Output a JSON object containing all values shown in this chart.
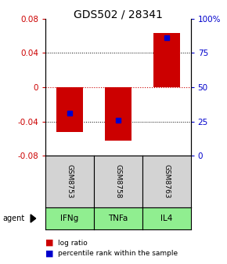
{
  "title": "GDS502 / 28341",
  "samples": [
    "GSM8753",
    "GSM8758",
    "GSM8763"
  ],
  "agents": [
    "IFNg",
    "TNFa",
    "IL4"
  ],
  "log_ratios": [
    -0.052,
    -0.062,
    0.063
  ],
  "percentile_ranks": [
    31,
    26,
    86
  ],
  "ylim": [
    -0.08,
    0.08
  ],
  "yticks_left": [
    -0.08,
    -0.04,
    0,
    0.04,
    0.08
  ],
  "yticks_right": [
    0,
    25,
    50,
    75,
    100
  ],
  "bar_color": "#cc0000",
  "dot_color": "#0000cc",
  "zero_line_color": "#cc0000",
  "agent_color": "#90ee90",
  "sample_bg": "#d3d3d3",
  "title_fontsize": 10,
  "tick_fontsize": 7.5,
  "legend_fontsize": 6.5
}
